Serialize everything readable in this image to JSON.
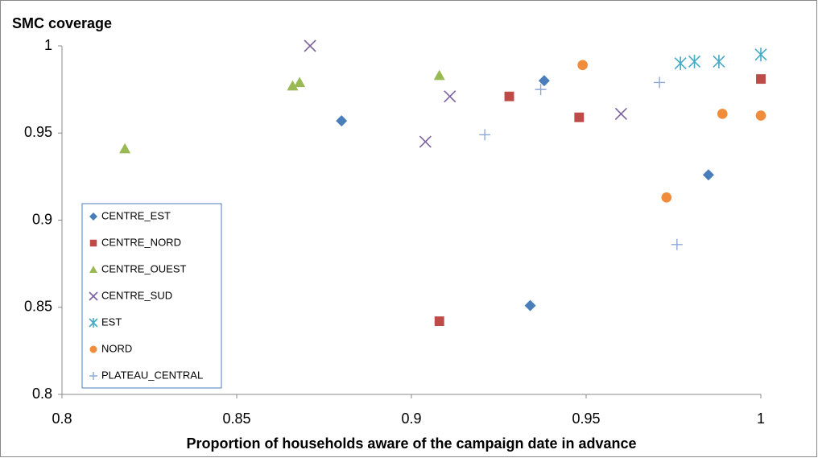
{
  "chart_data": {
    "type": "scatter",
    "y_title": "SMC coverage",
    "x_title": "Proportion of households aware of the campaign date in advance",
    "xlim": [
      0.8,
      1
    ],
    "xticks": [
      0.8,
      0.85,
      0.9,
      0.95,
      1
    ],
    "ylim": [
      0.8,
      1
    ],
    "yticks": [
      0.8,
      0.85,
      0.9,
      0.95,
      1
    ],
    "grid": false,
    "legend": "lower-left",
    "series": [
      {
        "name": "CENTRE_EST",
        "color": "#4a7ebb",
        "marker": "diamond",
        "x": [
          0.88,
          0.938,
          0.985,
          0.934
        ],
        "values": [
          0.957,
          0.98,
          0.926,
          0.851
        ]
      },
      {
        "name": "CENTRE_NORD",
        "color": "#be4b48",
        "marker": "square",
        "x": [
          0.928,
          0.948,
          1.0,
          0.908
        ],
        "values": [
          0.971,
          0.959,
          0.981,
          0.842
        ]
      },
      {
        "name": "CENTRE_OUEST",
        "color": "#98b954",
        "marker": "triangle",
        "x": [
          0.818,
          0.866,
          0.868,
          0.908
        ],
        "values": [
          0.941,
          0.977,
          0.979,
          0.983
        ]
      },
      {
        "name": "CENTRE_SUD",
        "color": "#7d60a0",
        "marker": "x",
        "x": [
          0.871,
          0.911,
          0.904,
          0.96
        ],
        "values": [
          1.0,
          0.971,
          0.945,
          0.961
        ]
      },
      {
        "name": "EST",
        "color": "#46aac5",
        "marker": "star",
        "x": [
          0.977,
          0.981,
          0.988,
          1.0
        ],
        "values": [
          0.99,
          0.991,
          0.991,
          0.995
        ]
      },
      {
        "name": "NORD",
        "color": "#f08c3a",
        "marker": "circle",
        "x": [
          0.949,
          0.989,
          1.0,
          0.973
        ],
        "values": [
          0.989,
          0.961,
          0.96,
          0.913
        ]
      },
      {
        "name": "PLATEAU_CENTRAL",
        "color": "#8fa8d8",
        "marker": "plus",
        "x": [
          0.921,
          0.937,
          0.971,
          0.976
        ],
        "values": [
          0.949,
          0.975,
          0.979,
          0.886
        ]
      }
    ]
  }
}
